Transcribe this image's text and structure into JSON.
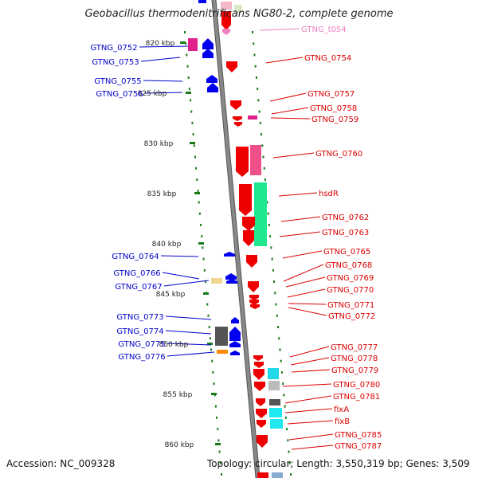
{
  "title": "Geobacillus thermodenitrificans NG80-2, complete genome",
  "accession": "Accession: NC_009328",
  "stats": "Topology: circular; Length: 3,550,319 bp; Genes: 3,509",
  "colors": {
    "backbone": "#888888",
    "tick": "#1a7a1a",
    "forward_label": "#0000cc",
    "reverse_label": "#dd0000",
    "rna_label": "#f080c0",
    "arrow_forward": "#0000ee",
    "arrow_reverse": "#ee0000"
  },
  "kbp_marks": [
    {
      "label": "820 kbp"
    },
    {
      "label": "825 kbp"
    },
    {
      "label": "830 kbp"
    },
    {
      "label": "835 kbp"
    },
    {
      "label": "840 kbp"
    },
    {
      "label": "845 kbp"
    },
    {
      "label": "850 kbp"
    },
    {
      "label": "855 kbp"
    },
    {
      "label": "860 kbp"
    }
  ],
  "left_labels": [
    {
      "text": "GTNG_0752"
    },
    {
      "text": "GTNG_0753"
    },
    {
      "text": "GTNG_0755"
    },
    {
      "text": "GTNG_0756"
    },
    {
      "text": "GTNG_0764"
    },
    {
      "text": "GTNG_0766"
    },
    {
      "text": "GTNG_0767"
    },
    {
      "text": "GTNG_0773"
    },
    {
      "text": "GTNG_0774"
    },
    {
      "text": "GTNG_0775"
    },
    {
      "text": "GTNG_0776"
    }
  ],
  "right_labels": [
    {
      "text": "GTNG_t054",
      "kind": "rna"
    },
    {
      "text": "GTNG_0754"
    },
    {
      "text": "GTNG_0757"
    },
    {
      "text": "GTNG_0758"
    },
    {
      "text": "GTNG_0759"
    },
    {
      "text": "GTNG_0760"
    },
    {
      "text": "hsdR"
    },
    {
      "text": "GTNG_0762"
    },
    {
      "text": "GTNG_0763"
    },
    {
      "text": "GTNG_0765"
    },
    {
      "text": "GTNG_0768"
    },
    {
      "text": "GTNG_0769"
    },
    {
      "text": "GTNG_0770"
    },
    {
      "text": "GTNG_0771"
    },
    {
      "text": "GTNG_0772"
    },
    {
      "text": "GTNG_0777"
    },
    {
      "text": "GTNG_0778"
    },
    {
      "text": "GTNG_0779"
    },
    {
      "text": "GTNG_0780"
    },
    {
      "text": "GTNG_0781"
    },
    {
      "text": "fixA"
    },
    {
      "text": "fixB"
    },
    {
      "text": "GTNG_0785"
    },
    {
      "text": "GTNG_0787"
    }
  ]
}
